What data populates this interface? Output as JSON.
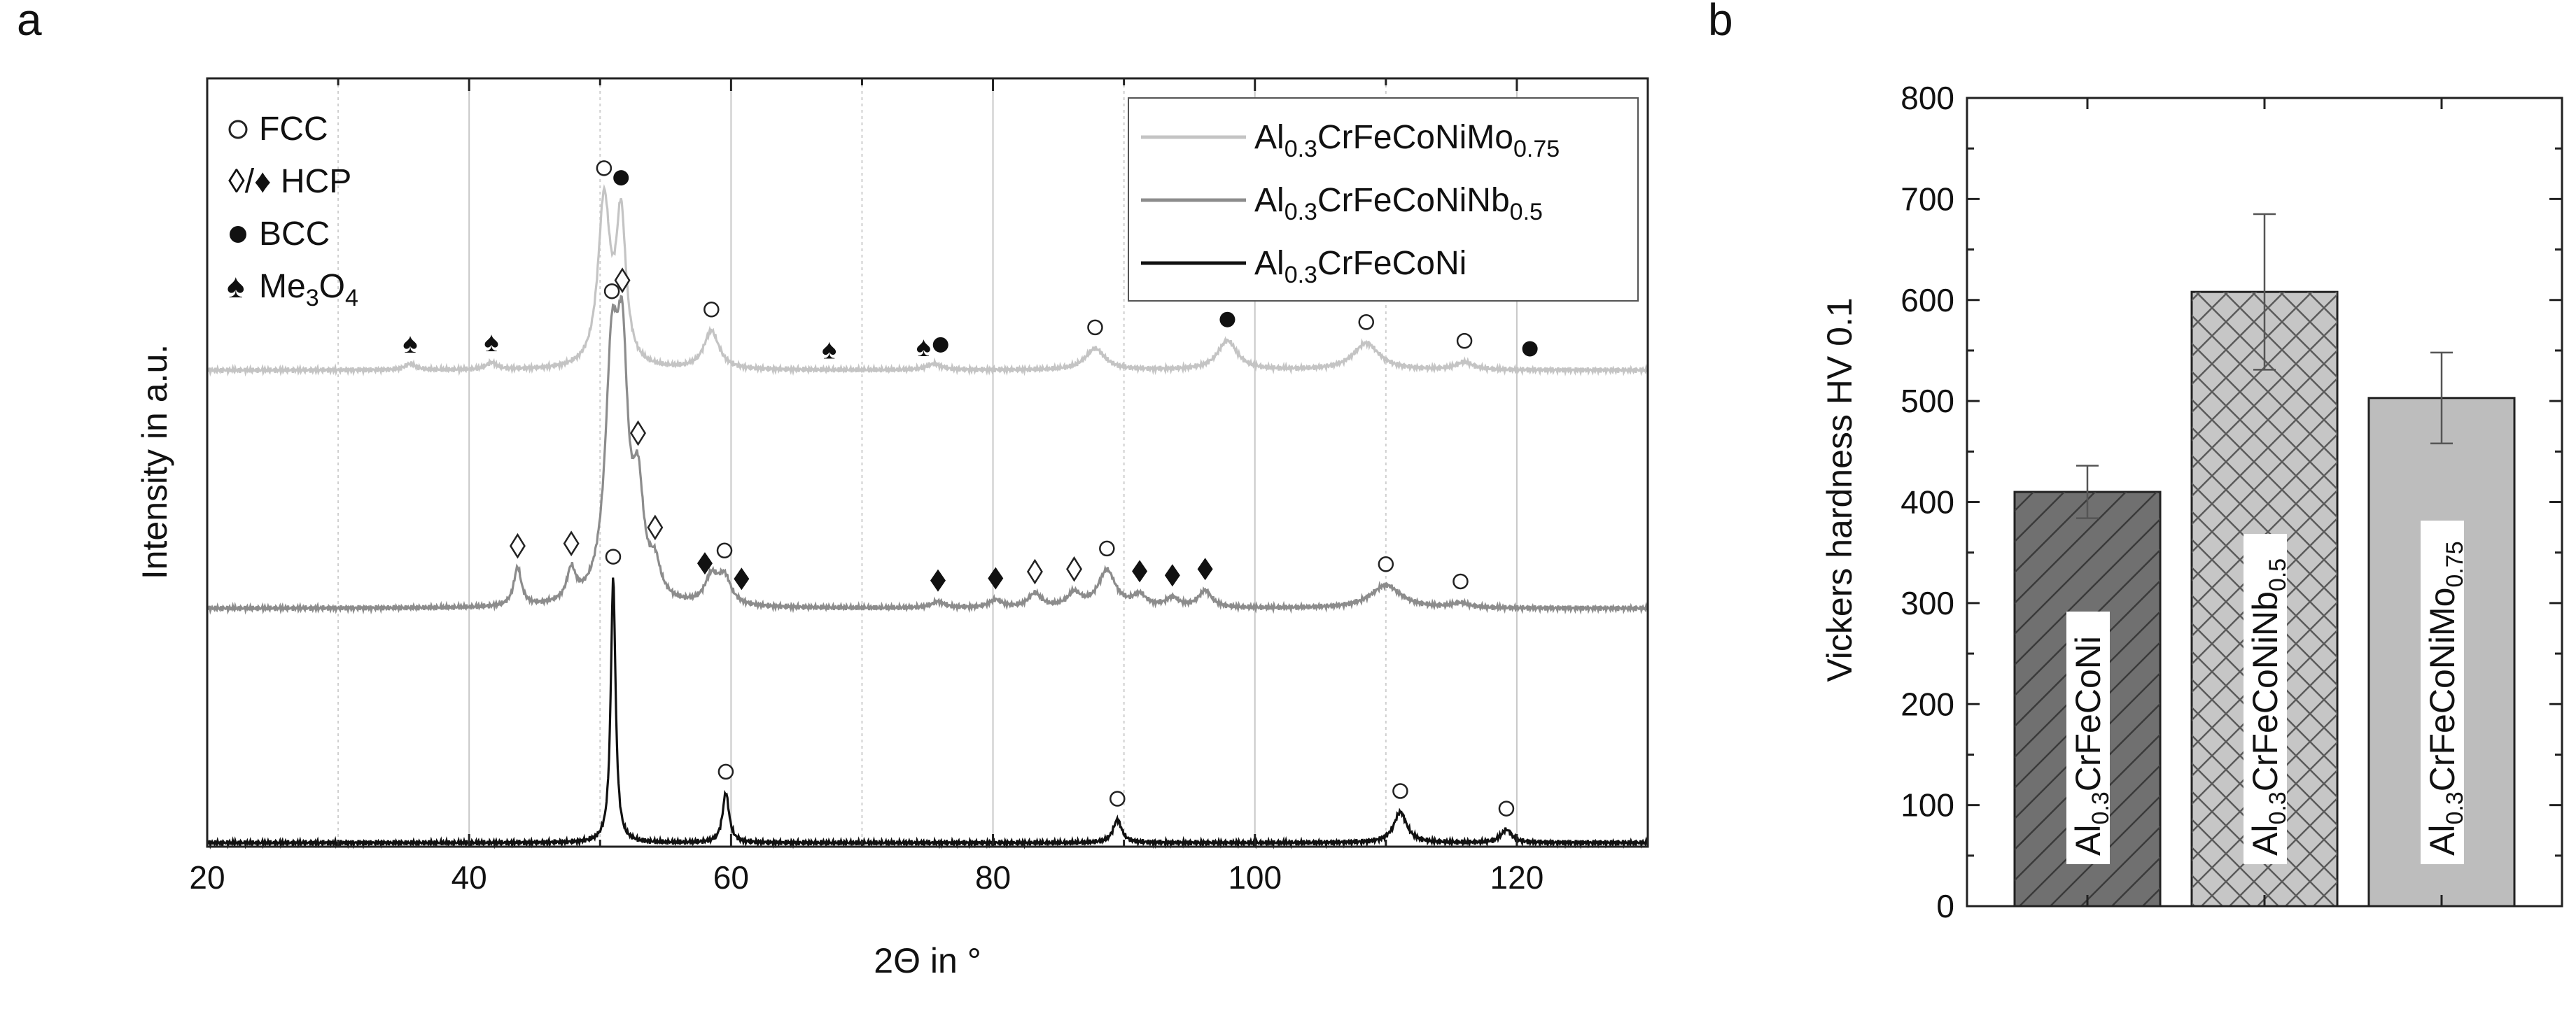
{
  "chart_data": [
    {
      "type": "line",
      "panel_label": "a",
      "xlabel": "2Θ in °",
      "ylabel": "Intensity in a.u.",
      "xlim": [
        20,
        130
      ],
      "x_ticks": [
        20,
        40,
        60,
        80,
        100,
        120
      ],
      "grid": true,
      "phase_legend": [
        {
          "symbol": "open-circle",
          "label": "FCC"
        },
        {
          "symbol": "diamond",
          "label": "◊/♦ HCP"
        },
        {
          "symbol": "filled-circle",
          "label": "BCC"
        },
        {
          "symbol": "spade",
          "label": "Me3O4",
          "base": "Me",
          "sub1": "3",
          "mid": "O",
          "sub2": "4"
        }
      ],
      "series": [
        {
          "name": "Al0.3CrFeCoNiMo0.75",
          "legend": {
            "base": "Al",
            "sub1": "0.3",
            "mid": "CrFeCoNiMo",
            "sub2": "0.75"
          },
          "color": "#c4c4c4",
          "offset": 0.62,
          "peaks": [
            {
              "x": 50.3,
              "h": 0.215,
              "w": 0.55
            },
            {
              "x": 51.6,
              "h": 0.19,
              "w": 0.45
            },
            {
              "x": 58.5,
              "h": 0.05,
              "w": 0.7
            },
            {
              "x": 87.8,
              "h": 0.028,
              "w": 0.9
            },
            {
              "x": 97.9,
              "h": 0.038,
              "w": 0.9
            },
            {
              "x": 108.5,
              "h": 0.035,
              "w": 1.2
            },
            {
              "x": 116.0,
              "h": 0.01,
              "w": 0.8
            },
            {
              "x": 35.5,
              "h": 0.008,
              "w": 0.5
            },
            {
              "x": 41.7,
              "h": 0.009,
              "w": 0.5
            },
            {
              "x": 75.5,
              "h": 0.008,
              "w": 0.7
            }
          ],
          "markers": [
            {
              "x": 50.3,
              "symbol": "open-circle"
            },
            {
              "x": 51.6,
              "symbol": "filled-circle"
            },
            {
              "x": 58.5,
              "symbol": "open-circle"
            },
            {
              "x": 87.8,
              "symbol": "open-circle"
            },
            {
              "x": 97.9,
              "symbol": "filled-circle"
            },
            {
              "x": 108.5,
              "symbol": "open-circle"
            },
            {
              "x": 116.0,
              "symbol": "open-circle"
            },
            {
              "x": 121.0,
              "symbol": "filled-circle"
            },
            {
              "x": 35.5,
              "symbol": "spade"
            },
            {
              "x": 41.7,
              "symbol": "spade"
            },
            {
              "x": 67.5,
              "symbol": "spade"
            },
            {
              "x": 74.7,
              "symbol": "spade"
            },
            {
              "x": 76.0,
              "symbol": "filled-circle"
            }
          ]
        },
        {
          "name": "Al0.3CrFeCoNiNb0.5",
          "legend": {
            "base": "Al",
            "sub1": "0.3",
            "mid": "CrFeCoNiNb",
            "sub2": "0.5"
          },
          "color": "#8c8c8c",
          "offset": 0.31,
          "peaks": [
            {
              "x": 43.7,
              "h": 0.05,
              "w": 0.35
            },
            {
              "x": 47.8,
              "h": 0.04,
              "w": 0.4
            },
            {
              "x": 50.9,
              "h": 0.3,
              "w": 0.6
            },
            {
              "x": 51.7,
              "h": 0.27,
              "w": 0.5
            },
            {
              "x": 52.9,
              "h": 0.13,
              "w": 0.5
            },
            {
              "x": 54.2,
              "h": 0.04,
              "w": 0.5
            },
            {
              "x": 58.5,
              "h": 0.035,
              "w": 0.6
            },
            {
              "x": 59.5,
              "h": 0.035,
              "w": 0.6
            },
            {
              "x": 75.8,
              "h": 0.008,
              "w": 0.6
            },
            {
              "x": 80.2,
              "h": 0.01,
              "w": 0.6
            },
            {
              "x": 83.2,
              "h": 0.018,
              "w": 0.6
            },
            {
              "x": 86.2,
              "h": 0.018,
              "w": 0.6
            },
            {
              "x": 88.7,
              "h": 0.048,
              "w": 0.8
            },
            {
              "x": 91.2,
              "h": 0.015,
              "w": 0.6
            },
            {
              "x": 93.7,
              "h": 0.012,
              "w": 0.6
            },
            {
              "x": 96.2,
              "h": 0.022,
              "w": 0.6
            },
            {
              "x": 110.0,
              "h": 0.03,
              "w": 1.4
            },
            {
              "x": 115.7,
              "h": 0.006,
              "w": 0.8
            }
          ],
          "markers": [
            {
              "x": 50.9,
              "symbol": "open-circle"
            },
            {
              "x": 51.7,
              "symbol": "diamond"
            },
            {
              "x": 52.9,
              "symbol": "diamond"
            },
            {
              "x": 43.7,
              "symbol": "diamond"
            },
            {
              "x": 47.8,
              "symbol": "diamond"
            },
            {
              "x": 54.2,
              "symbol": "diamond"
            },
            {
              "x": 58.0,
              "symbol": "filled-diamond"
            },
            {
              "x": 59.5,
              "symbol": "open-circle"
            },
            {
              "x": 60.8,
              "symbol": "filled-diamond"
            },
            {
              "x": 75.8,
              "symbol": "filled-diamond"
            },
            {
              "x": 80.2,
              "symbol": "filled-diamond"
            },
            {
              "x": 83.2,
              "symbol": "diamond"
            },
            {
              "x": 86.2,
              "symbol": "diamond"
            },
            {
              "x": 88.7,
              "symbol": "open-circle"
            },
            {
              "x": 91.2,
              "symbol": "filled-diamond"
            },
            {
              "x": 93.7,
              "symbol": "filled-diamond"
            },
            {
              "x": 96.2,
              "symbol": "filled-diamond"
            },
            {
              "x": 110.0,
              "symbol": "open-circle"
            },
            {
              "x": 115.7,
              "symbol": "open-circle"
            }
          ]
        },
        {
          "name": "Al0.3CrFeCoNi",
          "legend": {
            "base": "Al",
            "sub1": "0.3",
            "mid": "CrFeCoNi",
            "sub2": ""
          },
          "color": "#111111",
          "offset": 0.005,
          "peaks": [
            {
              "x": 51.0,
              "h": 0.345,
              "w": 0.22
            },
            {
              "x": 59.6,
              "h": 0.065,
              "w": 0.3
            },
            {
              "x": 89.5,
              "h": 0.03,
              "w": 0.4
            },
            {
              "x": 111.1,
              "h": 0.04,
              "w": 0.6
            },
            {
              "x": 119.2,
              "h": 0.017,
              "w": 0.5
            }
          ],
          "markers": [
            {
              "x": 51.0,
              "symbol": "open-circle"
            },
            {
              "x": 59.6,
              "symbol": "open-circle"
            },
            {
              "x": 89.5,
              "symbol": "open-circle"
            },
            {
              "x": 111.1,
              "symbol": "open-circle"
            },
            {
              "x": 119.2,
              "symbol": "open-circle"
            }
          ]
        }
      ]
    },
    {
      "type": "bar",
      "panel_label": "b",
      "ylabel": "Vickers hardness HV 0.1",
      "ylim": [
        0,
        800
      ],
      "y_ticks": [
        0,
        100,
        200,
        300,
        400,
        500,
        600,
        700,
        800
      ],
      "categories": [
        "Al0.3CrFeCoNi",
        "Al0.3CrFeCoNiNb0.5",
        "Al0.3CrFeCoNiMo0.75"
      ],
      "values": [
        410,
        608,
        503
      ],
      "errors": [
        26,
        77,
        45
      ],
      "bar_labels": [
        {
          "base": "Al",
          "sub1": "0.3",
          "mid": "CrFeCoNi",
          "sub2": ""
        },
        {
          "base": "Al",
          "sub1": "0.3",
          "mid": "CrFeCoNiNb",
          "sub2": "0.5"
        },
        {
          "base": "Al",
          "sub1": "0.3",
          "mid": "CrFeCoNiMo",
          "sub2": "0.75"
        }
      ],
      "colors": [
        "#707070",
        "#c6c6c6",
        "#bdbdbd"
      ],
      "patterns": [
        "diagonal",
        "crosshatch",
        "none"
      ]
    }
  ]
}
